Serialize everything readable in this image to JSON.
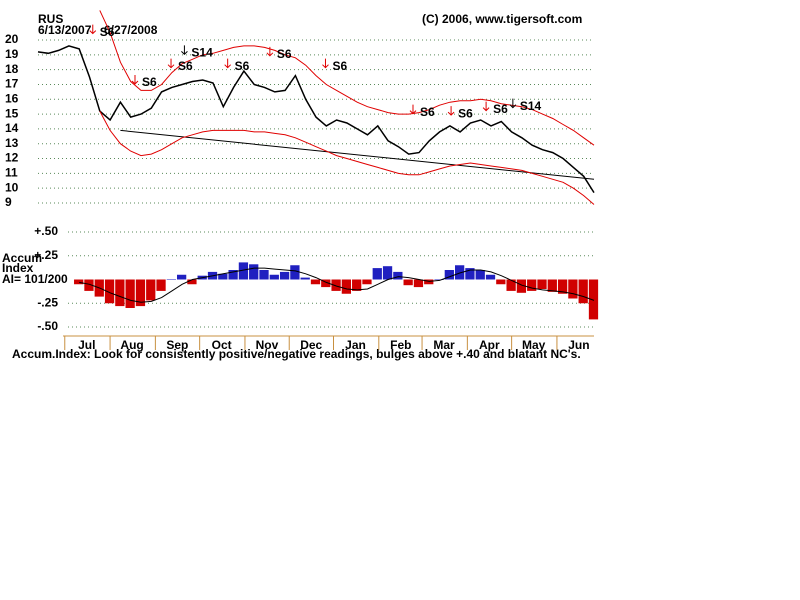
{
  "chart_data": [
    {
      "type": "line",
      "title": "RUS",
      "date_range": [
        "6/13/2007",
        "6/27/2008"
      ],
      "credit": "(C) 2006, www.tigersoft.com",
      "xlim": [
        0,
        54
      ],
      "ylim": [
        9,
        20
      ],
      "yticks": [
        20,
        19,
        18,
        17,
        16,
        15,
        14,
        13,
        12,
        11,
        10,
        9
      ],
      "grid": true,
      "series": [
        {
          "color": "#000000",
          "values": [
            19.2,
            19.1,
            19.3,
            19.6,
            19.4,
            17.5,
            15.2,
            14.6,
            15.8,
            14.8,
            15.0,
            15.4,
            16.5,
            16.8,
            17.0,
            17.2,
            17.3,
            17.1,
            15.5,
            16.8,
            17.9,
            17.0,
            16.8,
            16.5,
            16.6,
            17.6,
            16.0,
            14.8,
            14.2,
            14.6,
            14.4,
            14.0,
            13.6,
            14.2,
            13.2,
            12.8,
            12.3,
            12.4,
            13.2,
            13.8,
            14.2,
            13.8,
            14.4,
            14.6,
            14.2,
            14.5,
            13.8,
            13.4,
            12.9,
            12.6,
            12.4,
            12.0,
            11.4,
            10.8,
            9.7
          ]
        },
        {
          "color": "#e00000",
          "values": [
            null,
            null,
            null,
            null,
            null,
            null,
            22.0,
            20.5,
            18.5,
            17.2,
            16.6,
            16.6,
            17.0,
            17.8,
            18.4,
            18.7,
            19.0,
            19.1,
            19.3,
            19.5,
            19.6,
            19.6,
            19.5,
            19.3,
            19.0,
            18.8,
            18.3,
            17.6,
            17.0,
            16.6,
            16.2,
            15.8,
            15.5,
            15.3,
            15.1,
            15.0,
            15.0,
            15.1,
            15.3,
            15.6,
            15.8,
            15.9,
            15.9,
            16.0,
            15.9,
            15.7,
            15.6,
            15.5,
            15.3,
            15.0,
            14.7,
            14.3,
            13.9,
            13.4,
            12.9
          ]
        },
        {
          "color": "#e00000",
          "values": [
            null,
            null,
            null,
            null,
            null,
            null,
            15.2,
            13.9,
            13.0,
            12.5,
            12.2,
            12.3,
            12.6,
            13.0,
            13.4,
            13.6,
            13.8,
            13.9,
            13.9,
            13.9,
            13.9,
            13.8,
            13.8,
            13.7,
            13.6,
            13.4,
            13.1,
            12.8,
            12.5,
            12.2,
            12.0,
            11.8,
            11.6,
            11.4,
            11.2,
            11.0,
            10.9,
            10.9,
            11.1,
            11.3,
            11.5,
            11.6,
            11.7,
            11.6,
            11.5,
            11.4,
            11.3,
            11.2,
            11.0,
            10.8,
            10.6,
            10.4,
            10.0,
            9.5,
            8.9
          ]
        }
      ],
      "trendline": {
        "color": "#000000",
        "x": [
          8,
          54
        ],
        "values": [
          13.9,
          10.6
        ]
      },
      "annotations": [
        {
          "text": "S6",
          "x": 6.0,
          "y": 20.5,
          "arrow_color": "#e00000"
        },
        {
          "text": "S6",
          "x": 10.1,
          "y": 17.1,
          "arrow_color": "#e00000"
        },
        {
          "text": "S6",
          "x": 13.6,
          "y": 18.2,
          "arrow_color": "#e00000"
        },
        {
          "text": "S14",
          "x": 14.9,
          "y": 19.1,
          "arrow_color": "#000000"
        },
        {
          "text": "S6",
          "x": 19.1,
          "y": 18.2,
          "arrow_color": "#e00000"
        },
        {
          "text": "S6",
          "x": 23.2,
          "y": 19.0,
          "arrow_color": "#e00000"
        },
        {
          "text": "S6",
          "x": 28.6,
          "y": 18.2,
          "arrow_color": "#e00000"
        },
        {
          "text": "S6",
          "x": 37.1,
          "y": 15.1,
          "arrow_color": "#e00000"
        },
        {
          "text": "S6",
          "x": 40.8,
          "y": 15.0,
          "arrow_color": "#e00000"
        },
        {
          "text": "S6",
          "x": 44.2,
          "y": 15.3,
          "arrow_color": "#e00000"
        },
        {
          "text": "S14",
          "x": 46.8,
          "y": 15.5,
          "arrow_color": "#000000"
        }
      ]
    },
    {
      "type": "bar",
      "ylabel_lines": [
        "Accum",
        "Index"
      ],
      "ai_label": "AI= 101/200",
      "note": "Accum.Index: Look for consistently positive/negative readings, bulges above +.40 and blatant NC's.",
      "xlim": [
        0,
        54
      ],
      "xticks": [
        {
          "value": 2.6,
          "label": "Jul"
        },
        {
          "value": 7,
          "label": "Aug"
        },
        {
          "value": 11.4,
          "label": "Sep"
        },
        {
          "value": 15.7,
          "label": "Oct"
        },
        {
          "value": 20.1,
          "label": "Nov"
        },
        {
          "value": 24.4,
          "label": "Dec"
        },
        {
          "value": 28.7,
          "label": "Jan"
        },
        {
          "value": 33.1,
          "label": "Feb"
        },
        {
          "value": 37.3,
          "label": "Mar"
        },
        {
          "value": 41.7,
          "label": "Apr"
        },
        {
          "value": 46,
          "label": "May"
        },
        {
          "value": 50.4,
          "label": "Jun"
        }
      ],
      "ylim": [
        -0.5,
        0.5
      ],
      "yticks": [
        {
          "value": 0.5,
          "label": "+.50"
        },
        {
          "value": 0.25,
          "label": "+.25"
        },
        {
          "value": -0.25,
          "label": "-.25"
        },
        {
          "value": -0.5,
          "label": "-.50"
        }
      ],
      "grid": true,
      "colors": {
        "positive": "#2020c0",
        "negative": "#d00000"
      },
      "values": [
        null,
        null,
        null,
        null,
        -0.05,
        -0.12,
        -0.18,
        -0.25,
        -0.28,
        -0.3,
        -0.28,
        -0.22,
        -0.12,
        0.0,
        0.05,
        -0.05,
        0.04,
        0.08,
        0.06,
        0.1,
        0.18,
        0.16,
        0.1,
        0.05,
        0.08,
        0.15,
        0.02,
        -0.05,
        -0.08,
        -0.12,
        -0.15,
        -0.12,
        -0.05,
        0.12,
        0.14,
        0.08,
        -0.06,
        -0.08,
        -0.05,
        0.0,
        0.1,
        0.15,
        0.12,
        0.1,
        0.05,
        -0.05,
        -0.12,
        -0.14,
        -0.12,
        -0.1,
        -0.13,
        -0.15,
        -0.2,
        -0.25,
        -0.42
      ],
      "ma": {
        "color": "#000000",
        "values": [
          null,
          null,
          null,
          null,
          -0.03,
          -0.05,
          -0.09,
          -0.14,
          -0.18,
          -0.22,
          -0.24,
          -0.23,
          -0.19,
          -0.12,
          -0.05,
          0.0,
          0.02,
          0.04,
          0.06,
          0.08,
          0.1,
          0.12,
          0.12,
          0.11,
          0.1,
          0.09,
          0.06,
          0.02,
          -0.03,
          -0.07,
          -0.1,
          -0.11,
          -0.1,
          -0.05,
          0.0,
          0.03,
          0.02,
          0.0,
          -0.02,
          -0.01,
          0.03,
          0.07,
          0.1,
          0.1,
          0.08,
          0.04,
          -0.01,
          -0.06,
          -0.09,
          -0.11,
          -0.12,
          -0.13,
          -0.15,
          -0.18,
          -0.22
        ]
      }
    }
  ]
}
